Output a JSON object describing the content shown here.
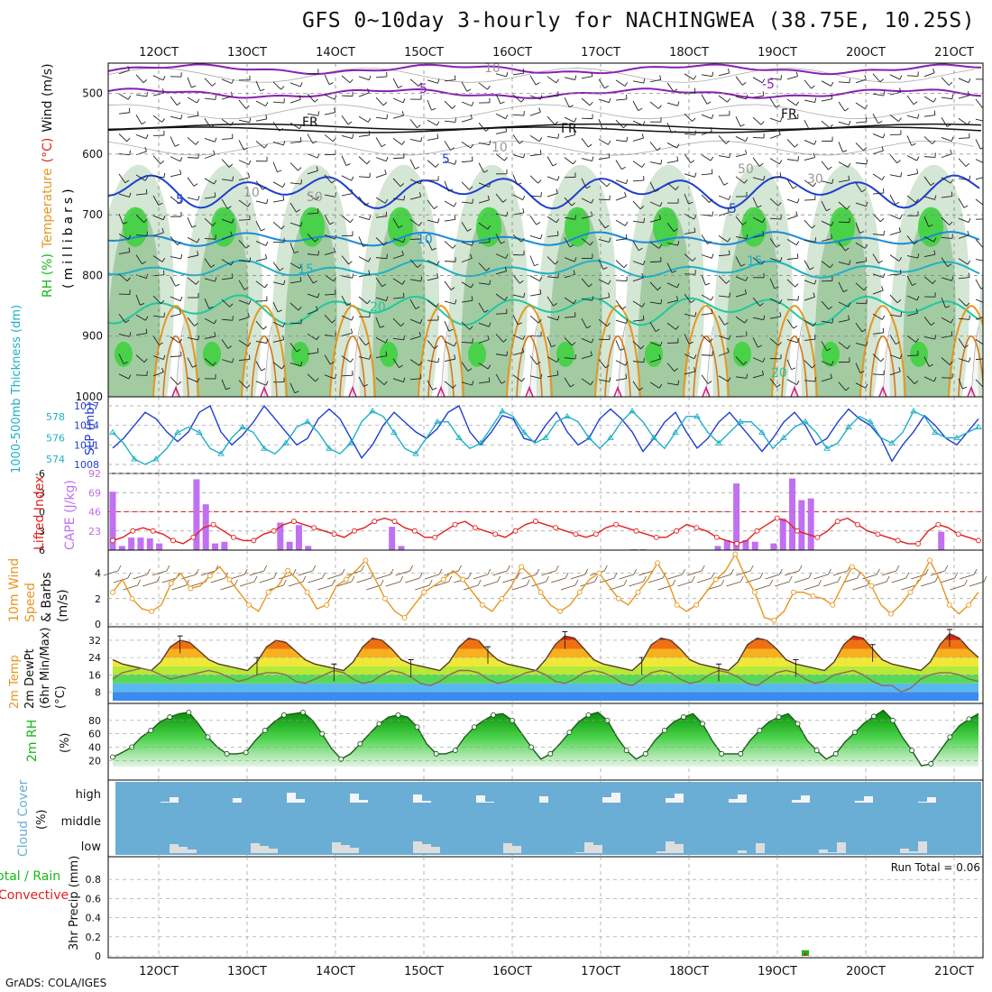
{
  "title": "GFS 0~10day 3-hourly for NACHINGWEA (38.75E, 10.25S)",
  "credit": "GrADS: COLA/IGES",
  "x_labels": [
    "12OCT",
    "13OCT",
    "14OCT",
    "15OCT",
    "16OCT",
    "17OCT",
    "18OCT",
    "19OCT",
    "20OCT",
    "21OCT"
  ],
  "colors": {
    "axis": "#000000",
    "grid": "#9a9a9a",
    "purple": "#8a1fb0",
    "blue": "#1e3fd0",
    "cyan": "#20b0c8",
    "orange": "#e8961e",
    "green": "#18b818",
    "red": "#e02020",
    "cloud": "#6aaed6",
    "cloud_light": "#eeeeee"
  },
  "chart_data": [
    {
      "panel": "upper_air",
      "type": "heatmap",
      "ylabel_parts": [
        {
          "text": "RH (%)",
          "color": "#18b818"
        },
        {
          "text": "Temperature",
          "color": "#e8961e"
        },
        {
          "text": "(°C)",
          "color": "#e02020"
        },
        {
          "text": "Wind (m/s)",
          "color": "#111111"
        }
      ],
      "ylabel2": "(millibars)",
      "y_ticks": [
        "500",
        "600",
        "700",
        "800",
        "900",
        "1000"
      ],
      "ylim": [
        450,
        1000
      ],
      "contour_labels": [
        "-5",
        "-5",
        "FR",
        "FR",
        "FR",
        "5",
        "5",
        "5",
        "10",
        "10",
        "15",
        "15",
        "20",
        "20",
        "10",
        "10",
        "50",
        "50",
        "30"
      ]
    },
    {
      "panel": "thickness_slp",
      "type": "line",
      "ylabel_left": "1000-500mb Thickness (dm)",
      "ylabel_right": "SLP (mb)",
      "y_ticks_left": [
        "574",
        "576",
        "578"
      ],
      "y_ticks_right": [
        "1008",
        "1011",
        "1014",
        "1017"
      ],
      "series": [
        {
          "name": "SLP (mb)",
          "values": [
            1010.5,
            1012,
            1014,
            1016,
            1015,
            1013,
            1011.5,
            1013,
            1016,
            1017,
            1013,
            1011,
            1012.5,
            1014.5,
            1017,
            1015,
            1013,
            1011,
            1012,
            1015,
            1016.5,
            1015,
            1012,
            1009,
            1011,
            1014,
            1016,
            1014.5,
            1013,
            1012,
            1013.5,
            1016,
            1017,
            1013,
            1011,
            1013,
            1015.5,
            1015,
            1012,
            1011.5,
            1014,
            1016,
            1013,
            1011,
            1012,
            1015,
            1016.5,
            1015,
            1013,
            1010,
            1012,
            1014.5,
            1016,
            1013,
            1010.5,
            1012,
            1014.5,
            1016,
            1014,
            1012,
            1010,
            1012,
            1014.5,
            1016,
            1014,
            1011,
            1012,
            1014.5,
            1016.5,
            1015,
            1014,
            1012,
            1008.5,
            1011,
            1013,
            1015.5,
            1014,
            1012,
            1011,
            1013,
            1015
          ]
        },
        {
          "name": "Thickness (dm)",
          "values": [
            576.5,
            575.5,
            574,
            573.5,
            574,
            575,
            576.5,
            577,
            576.5,
            575,
            574.5,
            576,
            577,
            576.5,
            575,
            574.5,
            575.5,
            577,
            577.5,
            576.5,
            575,
            574.5,
            575.5,
            577.5,
            578.5,
            578,
            576.5,
            575,
            574.5,
            576,
            577.5,
            577.5,
            576,
            575,
            575.5,
            577,
            578.5,
            578,
            576.5,
            575.5,
            576,
            577.5,
            578,
            577.5,
            576,
            575,
            576,
            577.5,
            578.5,
            577.5,
            576,
            575,
            576.5,
            578,
            578,
            576.5,
            575.5,
            576.5,
            577.5,
            577.5,
            576.5,
            575,
            576,
            577,
            577.5,
            576.5,
            575,
            575.5,
            577,
            578,
            577.5,
            576,
            575.5,
            576.5,
            578.5,
            578,
            576.5,
            576,
            576,
            576.5,
            577
          ]
        }
      ]
    },
    {
      "panel": "cape_li",
      "type": "bar",
      "ylabel_left": "Lifted Index",
      "ylabel_right": "CAPE (J/kg)",
      "y_ticks_left": [
        "-6",
        "-3",
        "0",
        "3",
        "6"
      ],
      "y_ticks_right": [
        "23",
        "46",
        "69",
        "92"
      ],
      "series": [
        {
          "name": "CAPE (J/kg)",
          "values": [
            70,
            5,
            15,
            15,
            14,
            8,
            0,
            0,
            0,
            85,
            55,
            8,
            10,
            0,
            0,
            0,
            0,
            0,
            33,
            10,
            30,
            5,
            0,
            0,
            0,
            0,
            0,
            0,
            0,
            0,
            28,
            5,
            0,
            0,
            0,
            0,
            0,
            0,
            0,
            0,
            0,
            0,
            0,
            0,
            0,
            0,
            0,
            0,
            0,
            0,
            0,
            0,
            0,
            0,
            0,
            0,
            1,
            1,
            0,
            0,
            0,
            0,
            0,
            0,
            0,
            5,
            12,
            80,
            12,
            10,
            0,
            8,
            38,
            86,
            60,
            62,
            0,
            0,
            0,
            0,
            0,
            0,
            0,
            0,
            0,
            0,
            0,
            0,
            0,
            22,
            0,
            0,
            0,
            0
          ]
        },
        {
          "name": "Lifted Index",
          "values": [
            4.5,
            4,
            3,
            2.5,
            3,
            3.5,
            4.5,
            5,
            4,
            2.5,
            2,
            3,
            4,
            4.5,
            4.5,
            3.5,
            3,
            2,
            1.5,
            2,
            2.5,
            3,
            3.5,
            4,
            3,
            2.5,
            1.5,
            1,
            1.5,
            2.5,
            3,
            4,
            4,
            3,
            2,
            1.5,
            2.5,
            3,
            3.5,
            4,
            3,
            2,
            1.5,
            2,
            2.5,
            3,
            3.5,
            4,
            3.5,
            2.5,
            2,
            2.5,
            3,
            3.5,
            4,
            4,
            3,
            2,
            2.5,
            3,
            4,
            4.5,
            5,
            4.5,
            3,
            2,
            1,
            1.5,
            3,
            3.5,
            4,
            3,
            1.5,
            1,
            2,
            3,
            3.5,
            4,
            4.5,
            5,
            5,
            3,
            2,
            2.5,
            3.5,
            4,
            4.5
          ]
        }
      ]
    },
    {
      "panel": "wind10m",
      "type": "line",
      "ylabel_parts": [
        {
          "text": "10m Wind",
          "color": "#e8961e"
        },
        {
          "text": "Speed",
          "color": "#e8961e"
        },
        {
          "text": "& Barbs",
          "color": "#111111"
        },
        {
          "text": "(m/s)",
          "color": "#111111"
        }
      ],
      "y_ticks": [
        "0",
        "2",
        "4"
      ],
      "series": [
        {
          "name": "10m Wind Speed (m/s)",
          "values": [
            2.5,
            3.5,
            2,
            1.2,
            1,
            1.5,
            3.2,
            4,
            2.8,
            3,
            3.8,
            4.5,
            3.5,
            2.5,
            1.5,
            1,
            2.5,
            3,
            4.2,
            3.5,
            2.5,
            1.2,
            1.5,
            3,
            3.5,
            4.2,
            5,
            3.5,
            2,
            1,
            0.5,
            1.5,
            2.5,
            3,
            3.5,
            4.2,
            3.5,
            2.5,
            1.5,
            1,
            2,
            3,
            4.5,
            3.8,
            2.5,
            1.5,
            1,
            1.5,
            2.5,
            3.5,
            4,
            3,
            2,
            1.5,
            2.5,
            3.5,
            4.8,
            3.5,
            1.5,
            1,
            1.5,
            2.5,
            3.5,
            4.2,
            5.5,
            3.8,
            2.5,
            0.5,
            0.3,
            1,
            2.5,
            2.5,
            2.2,
            2,
            1.5,
            3,
            4.5,
            4,
            3,
            1.5,
            0.8,
            1.5,
            2.5,
            3.5,
            5,
            3.5,
            1.5,
            0.8,
            1.5,
            2.5
          ]
        }
      ]
    },
    {
      "panel": "temp2m",
      "type": "area",
      "ylabel_parts": [
        {
          "text": "2m Temp",
          "color": "#e8961e"
        },
        {
          "text": "2m DewPt",
          "color": "#111111"
        },
        {
          "text": "(6hr Min/Max)",
          "color": "#111111"
        },
        {
          "text": "(°C)",
          "color": "#111111"
        }
      ],
      "y_ticks": [
        "8",
        "16",
        "24",
        "32"
      ],
      "series": [
        {
          "name": "2m Temp (°C)",
          "values": [
            23,
            21,
            20,
            19,
            18,
            22,
            29,
            32,
            31,
            27,
            23,
            21,
            20,
            19,
            18,
            22,
            29,
            32,
            31,
            27,
            23,
            21,
            20,
            19,
            18,
            22,
            29,
            33,
            32,
            28,
            23,
            21,
            20,
            19,
            18,
            22,
            29,
            33,
            32,
            27,
            23,
            21,
            20,
            19,
            18,
            23,
            30,
            34,
            33,
            28,
            23,
            21,
            20,
            19,
            18,
            22,
            30,
            33,
            32,
            28,
            23,
            21,
            20,
            19,
            18,
            22,
            30,
            33,
            32,
            28,
            23,
            21,
            20,
            19,
            18,
            22,
            30,
            34,
            33,
            28,
            23,
            21,
            20,
            19,
            18,
            22,
            30,
            35,
            33,
            28,
            24
          ]
        },
        {
          "name": "2m DewPt (°C)",
          "values": [
            14,
            17,
            18,
            19,
            18,
            16,
            14,
            15,
            16,
            17,
            18,
            17,
            15,
            13,
            14,
            16,
            17,
            17,
            16,
            13,
            12,
            14,
            16,
            18,
            17,
            14,
            12,
            13,
            16,
            18,
            17,
            15,
            12,
            11,
            13,
            16,
            18,
            18,
            17,
            14,
            12,
            13,
            15,
            17,
            18,
            16,
            13,
            12,
            14,
            17,
            18,
            17,
            15,
            12,
            11,
            14,
            17,
            18,
            17,
            14,
            12,
            13,
            16,
            18,
            17,
            15,
            12,
            11,
            14,
            17,
            18,
            17,
            14,
            12,
            13,
            16,
            17,
            18,
            16,
            13,
            11,
            11,
            8,
            10,
            14,
            16,
            17,
            17,
            16,
            14,
            13
          ]
        }
      ]
    },
    {
      "panel": "rh2m",
      "type": "area",
      "ylabel": "2m RH",
      "ylabel2": "(%)",
      "y_ticks": [
        "20",
        "40",
        "60",
        "80"
      ],
      "series": [
        {
          "name": "2m RH (%)",
          "values": [
            25,
            32,
            40,
            55,
            65,
            78,
            85,
            90,
            92,
            75,
            55,
            40,
            30,
            30,
            32,
            50,
            65,
            78,
            88,
            90,
            92,
            80,
            60,
            38,
            22,
            30,
            45,
            60,
            75,
            85,
            88,
            85,
            70,
            45,
            30,
            30,
            35,
            55,
            70,
            80,
            88,
            90,
            80,
            60,
            40,
            22,
            30,
            45,
            62,
            78,
            88,
            92,
            80,
            55,
            35,
            22,
            30,
            50,
            65,
            78,
            85,
            90,
            75,
            50,
            30,
            30,
            30,
            50,
            65,
            78,
            85,
            90,
            75,
            50,
            35,
            22,
            30,
            48,
            62,
            76,
            86,
            95,
            80,
            55,
            35,
            12,
            15,
            35,
            55,
            72,
            82,
            90
          ]
        }
      ]
    },
    {
      "panel": "cloud",
      "type": "bar",
      "ylabel": "Cloud Cover",
      "ylabel2": "(%)",
      "y_ticks": [
        "low",
        "middle",
        "high"
      ]
    },
    {
      "panel": "precip",
      "type": "bar",
      "ylabel_parts": [
        {
          "text": "Total / Rain",
          "color": "#18b818"
        },
        {
          "text": "Convective",
          "color": "#e02020"
        }
      ],
      "ylabel2": "3hr Precip (mm)",
      "y_ticks": [
        "0",
        "0.2",
        "0.4",
        "0.6",
        "0.8"
      ],
      "ylim": [
        0,
        1.0
      ],
      "annotation": "Run Total = 0.06",
      "series": [
        {
          "name": "Total / Rain",
          "values": [
            0,
            0,
            0,
            0,
            0,
            0,
            0,
            0,
            0,
            0,
            0,
            0,
            0,
            0,
            0,
            0,
            0,
            0,
            0,
            0,
            0,
            0,
            0,
            0,
            0,
            0,
            0,
            0,
            0,
            0,
            0,
            0,
            0,
            0,
            0,
            0,
            0,
            0,
            0,
            0,
            0,
            0,
            0,
            0,
            0,
            0,
            0,
            0,
            0,
            0,
            0,
            0,
            0,
            0,
            0,
            0,
            0,
            0,
            0,
            0,
            0,
            0,
            0,
            0,
            0,
            0,
            0,
            0,
            0,
            0,
            0,
            0,
            0.06,
            0,
            0,
            0,
            0,
            0,
            0,
            0,
            0,
            0,
            0,
            0,
            0,
            0,
            0,
            0,
            0,
            0,
            0
          ]
        },
        {
          "name": "Convective",
          "values": [
            0,
            0,
            0,
            0,
            0,
            0,
            0,
            0,
            0,
            0,
            0,
            0,
            0,
            0,
            0,
            0,
            0,
            0,
            0,
            0,
            0,
            0,
            0,
            0,
            0,
            0,
            0,
            0,
            0,
            0,
            0,
            0,
            0,
            0,
            0,
            0,
            0,
            0,
            0,
            0,
            0,
            0,
            0,
            0,
            0,
            0,
            0,
            0,
            0,
            0,
            0,
            0,
            0,
            0,
            0,
            0,
            0,
            0,
            0,
            0,
            0,
            0,
            0,
            0,
            0,
            0,
            0,
            0,
            0,
            0,
            0,
            0,
            0.03,
            0,
            0,
            0,
            0,
            0,
            0,
            0,
            0,
            0,
            0,
            0,
            0,
            0,
            0,
            0,
            0,
            0,
            0
          ]
        }
      ]
    }
  ]
}
